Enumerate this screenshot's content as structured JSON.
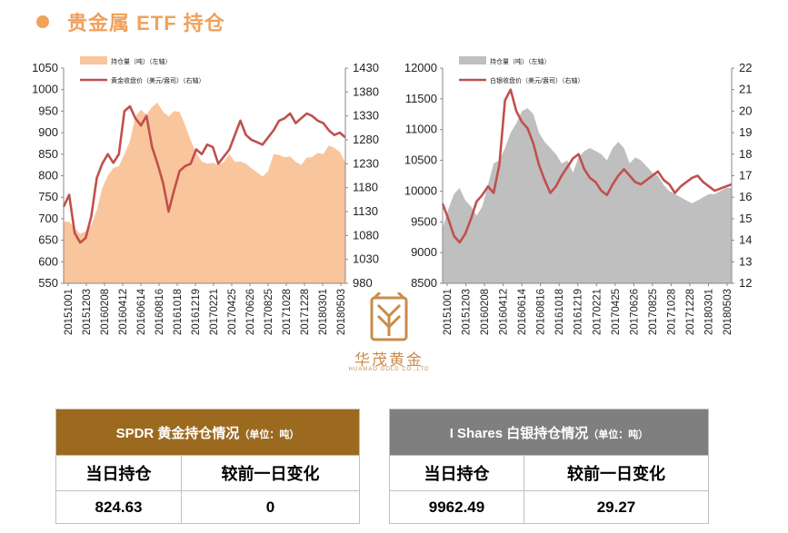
{
  "page": {
    "title": "贵金属 ETF 持仓"
  },
  "brand": {
    "name_cn": "华茂黄金",
    "name_en": "HUAMAO GOLD CO.,LTD"
  },
  "colors": {
    "title": "#f0a15c",
    "gold_area": "#f9c59c",
    "silver_area": "#bfbfbf",
    "price_line": "#c0504d",
    "gold_header": "#9b6a1f",
    "silver_header": "#7f7f7f"
  },
  "chart_data": [
    {
      "type": "area",
      "legend": [
        "持仓量（吨）（左轴）",
        "黄金收盘价（美元/盎司）（右轴）"
      ],
      "x_labels": [
        "20151001",
        "20151203",
        "20160208",
        "20160412",
        "20160614",
        "20160816",
        "20161018",
        "20161219",
        "20170221",
        "20170425",
        "20170626",
        "20170825",
        "20171028",
        "20171228",
        "20180301",
        "20180503"
      ],
      "ylim_left": [
        550,
        1050
      ],
      "yticks_left": [
        550,
        600,
        650,
        700,
        750,
        800,
        850,
        900,
        950,
        1000,
        1050
      ],
      "ylim_right": [
        980,
        1430
      ],
      "yticks_right": [
        980,
        1030,
        1080,
        1130,
        1180,
        1230,
        1280,
        1330,
        1380,
        1430
      ],
      "series": [
        {
          "name": "持仓量（吨）（左轴）",
          "axis": "left",
          "values": [
            693,
            693,
            678,
            665,
            671,
            685,
            720,
            771,
            800,
            818,
            822,
            850,
            880,
            938,
            953,
            942,
            960,
            970,
            948,
            938,
            950,
            948,
            917,
            882,
            853,
            833,
            828,
            830,
            825,
            832,
            850,
            832,
            833,
            828,
            817,
            808,
            798,
            810,
            850,
            848,
            843,
            845,
            832,
            825,
            842,
            843,
            853,
            850,
            870,
            865,
            855,
            830
          ]
        },
        {
          "name": "黄金收盘价（美元/盎司）（右轴）",
          "axis": "right",
          "values": [
            1140,
            1165,
            1085,
            1065,
            1075,
            1120,
            1200,
            1230,
            1250,
            1232,
            1250,
            1340,
            1350,
            1325,
            1310,
            1330,
            1265,
            1230,
            1190,
            1130,
            1175,
            1215,
            1225,
            1230,
            1260,
            1250,
            1270,
            1265,
            1230,
            1245,
            1260,
            1290,
            1320,
            1290,
            1280,
            1275,
            1270,
            1285,
            1300,
            1320,
            1325,
            1335,
            1315,
            1325,
            1335,
            1330,
            1320,
            1315,
            1300,
            1290,
            1295,
            1285
          ]
        }
      ]
    },
    {
      "type": "area",
      "legend": [
        "持仓量（吨）（左轴）",
        "白银收盘价（美元/盎司）（右轴）"
      ],
      "x_labels": [
        "20151001",
        "20151203",
        "20160208",
        "20160412",
        "20160614",
        "20160816",
        "20161018",
        "20161219",
        "20170221",
        "20170425",
        "20170626",
        "20170825",
        "20171028",
        "20171228",
        "20180301",
        "20180503"
      ],
      "ylim_left": [
        8500,
        12000
      ],
      "yticks_left": [
        8500,
        9000,
        9500,
        10000,
        10500,
        11000,
        11500,
        12000
      ],
      "ylim_right": [
        12,
        22
      ],
      "yticks_right": [
        12,
        13,
        14,
        15,
        16,
        17,
        18,
        19,
        20,
        21,
        22
      ],
      "series": [
        {
          "name": "持仓量（吨）（左轴）",
          "axis": "left",
          "values": [
            9400,
            9700,
            9950,
            10050,
            9850,
            9750,
            9600,
            9750,
            10100,
            10450,
            10500,
            10700,
            10950,
            11100,
            11300,
            11350,
            11250,
            10950,
            10800,
            10700,
            10600,
            10450,
            10500,
            10300,
            10550,
            10650,
            10700,
            10650,
            10600,
            10500,
            10700,
            10800,
            10700,
            10450,
            10550,
            10500,
            10400,
            10300,
            10250,
            10100,
            10000,
            9950,
            9900,
            9850,
            9800,
            9850,
            9900,
            9950,
            9950,
            10000,
            10050,
            10050
          ]
        },
        {
          "name": "白银收盘价（美元/盎司）（右轴）",
          "axis": "right",
          "values": [
            15.7,
            15.0,
            14.2,
            13.9,
            14.3,
            15.0,
            15.8,
            16.1,
            16.5,
            16.2,
            17.5,
            20.5,
            21.0,
            20.0,
            19.5,
            19.2,
            18.5,
            17.5,
            16.8,
            16.2,
            16.5,
            17.0,
            17.4,
            17.8,
            18.0,
            17.3,
            16.9,
            16.7,
            16.3,
            16.1,
            16.6,
            17.0,
            17.3,
            17.0,
            16.7,
            16.6,
            16.8,
            17.0,
            17.2,
            16.8,
            16.6,
            16.2,
            16.5,
            16.7,
            16.9,
            17.0,
            16.7,
            16.5,
            16.3,
            16.4,
            16.5,
            16.6
          ]
        }
      ]
    }
  ],
  "tables": {
    "gold": {
      "title": "SPDR 黄金持仓情况",
      "unit": "（单位：吨）",
      "col1": "当日持仓",
      "col2": "较前一日变化",
      "v1": "824.63",
      "v2": "0"
    },
    "silver": {
      "title": "I Shares 白银持仓情况",
      "unit": "（单位：吨）",
      "col1": "当日持仓",
      "col2": "较前一日变化",
      "v1": "9962.49",
      "v2": "29.27"
    }
  }
}
